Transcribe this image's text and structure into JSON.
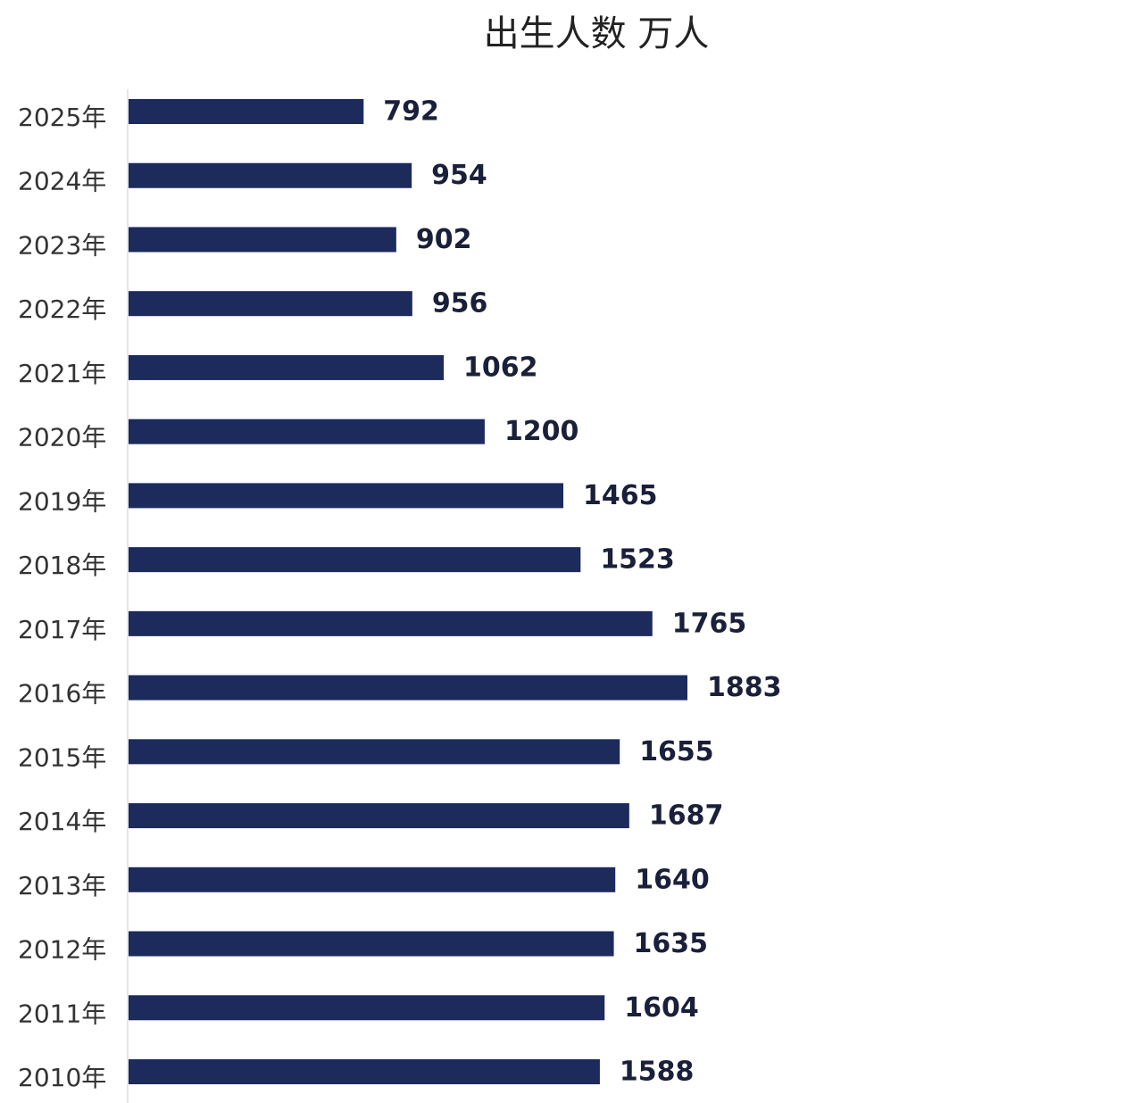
{
  "chart_data": {
    "type": "hbar",
    "title": "出生人数 万人",
    "categories": [
      "2025年",
      "2024年",
      "2023年",
      "2022年",
      "2021年",
      "2020年",
      "2019年",
      "2018年",
      "2017年",
      "2016年",
      "2015年",
      "2014年",
      "2013年",
      "2012年",
      "2011年",
      "2010年"
    ],
    "values": [
      792,
      954,
      902,
      956,
      1062,
      1200,
      1465,
      1523,
      1765,
      1883,
      1655,
      1687,
      1640,
      1635,
      1604,
      1588
    ],
    "color": "#1c2a5c"
  }
}
